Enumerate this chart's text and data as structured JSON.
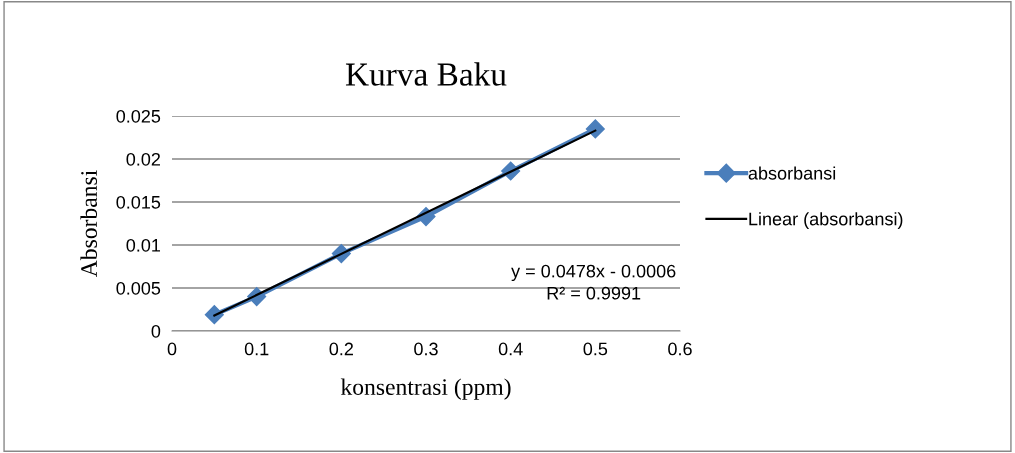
{
  "chart_data": {
    "type": "line",
    "title": "Kurva Baku",
    "xlabel": "konsentrasi (ppm)",
    "ylabel": "Absorbansi",
    "x": [
      0.05,
      0.1,
      0.2,
      0.3,
      0.4,
      0.5
    ],
    "series": [
      {
        "name": "absorbansi",
        "color": "#4a7ebb",
        "values": [
          0.0019,
          0.004,
          0.009,
          0.0133,
          0.0186,
          0.0235
        ],
        "marker": "diamond",
        "line_style": "solid"
      },
      {
        "name": "Linear (absorbansi)",
        "color": "#000000",
        "x": [
          0.05,
          0.5
        ],
        "values": [
          0.0018,
          0.0233
        ],
        "marker": "none",
        "line_style": "solid"
      }
    ],
    "annotations": [
      "y = 0.0478x - 0.0006\nR² = 0.9991"
    ],
    "xlim": [
      0,
      0.6
    ],
    "xticks": [
      0,
      0.1,
      0.2,
      0.3,
      0.4,
      0.5,
      0.6
    ],
    "ylim": [
      0,
      0.025
    ],
    "yticks": [
      0,
      0.005,
      0.01,
      0.015,
      0.02,
      0.025
    ],
    "grid": "y",
    "legend": "right"
  }
}
